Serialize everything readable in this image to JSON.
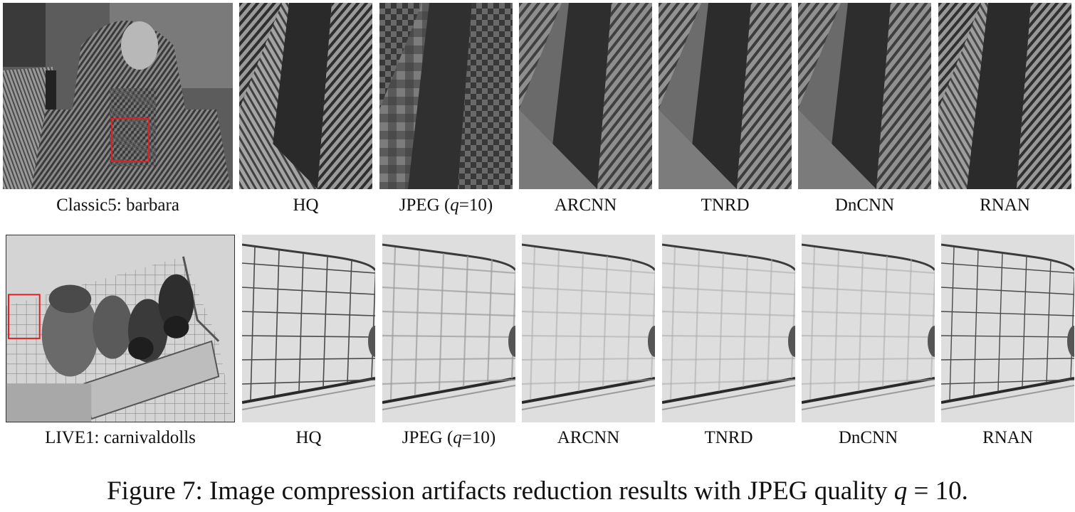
{
  "rows": [
    {
      "source_label": "Classic5: barbara",
      "crop_labels": {
        "hq": "HQ",
        "jpeg_prefix": "JPEG (",
        "jpeg_var": "q",
        "jpeg_suffix": "=10)",
        "arcnn": "ARCNN",
        "tnrd": "TNRD",
        "dncnn": "DnCNN",
        "rnan": "RNAN"
      }
    },
    {
      "source_label": "LIVE1: carnivaldolls",
      "crop_labels": {
        "hq": "HQ",
        "jpeg_prefix": "JPEG (",
        "jpeg_var": "q",
        "jpeg_suffix": "=10)",
        "arcnn": "ARCNN",
        "tnrd": "TNRD",
        "dncnn": "DnCNN",
        "rnan": "RNAN"
      }
    }
  ],
  "caption": {
    "prefix": "Figure 7: Image compression artifacts reduction results with JPEG quality ",
    "var": "q",
    "suffix": " = 10."
  },
  "colors": {
    "roi_box": "#e02020"
  }
}
